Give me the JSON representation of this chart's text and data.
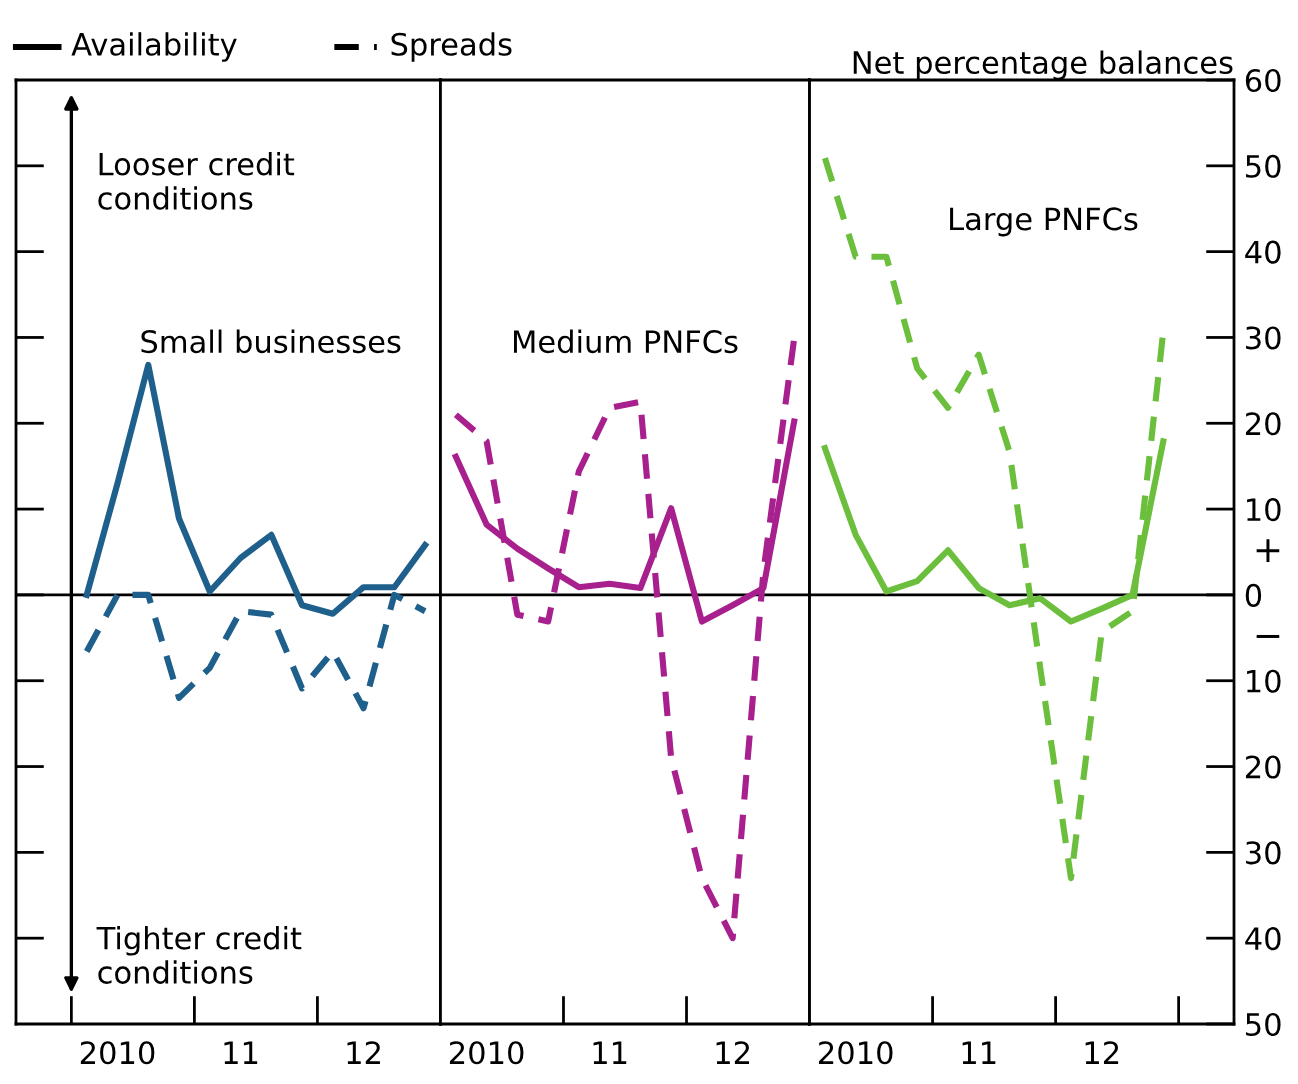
{
  "chart_data": [
    {
      "type": "line",
      "tick_labels": "x",
      "ylim": [
        -50,
        60
      ],
      "categories": [
        null,
        "2010",
        null,
        null,
        null,
        "11",
        null,
        null,
        null,
        "12",
        null,
        null
      ],
      "yticks": [
        -40,
        -30,
        -20,
        -10,
        0,
        10,
        20,
        30,
        40,
        50
      ],
      "series": [
        {
          "color": "#1f5f8b",
          "line_style": "solid",
          "values": [
            0,
            13,
            26.8,
            8.9,
            0.4,
            4.3,
            7,
            -1.2,
            -2.2,
            0.9,
            0.9,
            5.8
          ]
        },
        {
          "color": "#1f5f8b",
          "line_style": "dashed",
          "values": [
            -6.6,
            0,
            0,
            -12,
            -8.5,
            -1.9,
            -2.3,
            -10.9,
            -6.6,
            -13.2,
            0,
            -1.9
          ]
        }
      ],
      "ref_lines": [
        {
          "axis": "y",
          "value": 0,
          "color": "#000000"
        }
      ],
      "annotations": [
        "Looser credit\nconditions",
        "Small businesses",
        "Tighter credit\nconditions",
        "Availability",
        "Spreads"
      ]
    },
    {
      "type": "line",
      "tick_labels": "x",
      "ylim": [
        -50,
        60
      ],
      "categories": [
        null,
        "2010",
        null,
        null,
        null,
        "11",
        null,
        null,
        null,
        "12",
        null,
        null
      ],
      "yticks": [
        -40,
        -30,
        -20,
        -10,
        0,
        10,
        20,
        30,
        40,
        50
      ],
      "series": [
        {
          "color": "#a8208e",
          "line_style": "solid",
          "values": [
            16.1,
            8.2,
            5.4,
            3.1,
            0.9,
            1.3,
            0.8,
            10.1,
            -3.1,
            -1.2,
            0.8,
            20.2
          ]
        },
        {
          "color": "#a8208e",
          "line_style": "dashed",
          "values": [
            21,
            17.9,
            -2.3,
            -3.1,
            14.4,
            21.8,
            22.5,
            -19,
            -33,
            -40,
            2.7,
            29.9
          ]
        }
      ],
      "ref_lines": [
        {
          "axis": "y",
          "value": 0,
          "color": "#000000"
        }
      ],
      "annotations": [
        "Medium PNFCs"
      ]
    },
    {
      "type": "line",
      "ylim": [
        -50,
        60
      ],
      "ylabel": "Net percentage balances",
      "categories": [
        null,
        "2010",
        null,
        null,
        null,
        "11",
        null,
        null,
        null,
        "12",
        null,
        null
      ],
      "yticks": [
        {
          "value": -50,
          "label": "50"
        },
        {
          "value": -40,
          "label": "40"
        },
        {
          "value": -30,
          "label": "30"
        },
        {
          "value": -20,
          "label": "20"
        },
        {
          "value": -10,
          "label": "10"
        },
        0,
        10,
        20,
        30,
        40,
        50,
        60
      ],
      "series": [
        {
          "color": "#6cbf3c",
          "line_style": "solid",
          "values": [
            17.1,
            7,
            0.4,
            1.6,
            5.2,
            0.8,
            -1.2,
            -0.4,
            -3.1,
            -1.6,
            0,
            17.9
          ]
        },
        {
          "color": "#6cbf3c",
          "line_style": "dashed",
          "values": [
            50.9,
            39.4,
            39.4,
            26.4,
            21.8,
            28,
            16.7,
            -8.5,
            -33,
            -4.3,
            -1.9,
            30.7
          ]
        }
      ],
      "ref_lines": [
        {
          "axis": "y",
          "value": 0,
          "color": "#000000"
        }
      ],
      "annotations": [
        "Large PNFCs",
        "+",
        "−"
      ]
    }
  ]
}
